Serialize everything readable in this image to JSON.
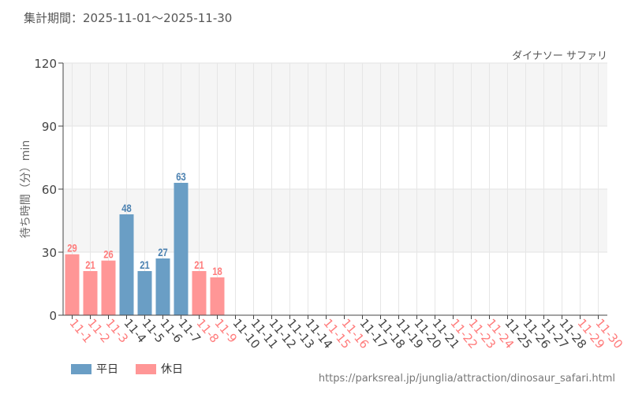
{
  "header": {
    "period": "集計期間：2025-11-01～2025-11-30"
  },
  "chart_data": {
    "type": "bar",
    "title": "",
    "subtitle": "ダイナソー サファリ",
    "ylabel": "待ち時間（分）min",
    "xlabel": "",
    "ylim": [
      0,
      120
    ],
    "yticks": [
      0,
      30,
      60,
      90,
      120
    ],
    "grid": true,
    "legend_position": "bottom-left",
    "categories": [
      "11-1",
      "11-2",
      "11-3",
      "11-4",
      "11-5",
      "11-6",
      "11-7",
      "11-8",
      "11-9",
      "11-10",
      "11-11",
      "11-12",
      "11-13",
      "11-14",
      "11-15",
      "11-16",
      "11-17",
      "11-18",
      "11-19",
      "11-20",
      "11-21",
      "11-22",
      "11-23",
      "11-24",
      "11-25",
      "11-26",
      "11-27",
      "11-28",
      "11-29",
      "11-30"
    ],
    "holiday": [
      true,
      true,
      true,
      false,
      false,
      false,
      false,
      true,
      true,
      false,
      false,
      false,
      false,
      false,
      true,
      true,
      false,
      false,
      false,
      false,
      false,
      true,
      true,
      true,
      false,
      false,
      false,
      false,
      true,
      true
    ],
    "values": [
      29,
      21,
      26,
      48,
      21,
      27,
      63,
      21,
      18,
      null,
      null,
      null,
      null,
      null,
      null,
      null,
      null,
      null,
      null,
      null,
      null,
      null,
      null,
      null,
      null,
      null,
      null,
      null,
      null,
      null
    ],
    "series": [
      {
        "name": "平日",
        "color": "#6a9ec5"
      },
      {
        "name": "休日",
        "color": "#ff9696"
      }
    ],
    "label_colors": {
      "weekday": "#4a80b0",
      "holiday": "#ff7b7b"
    }
  },
  "footer": {
    "url": "https://parksreal.jp/junglia/attraction/dinosaur_safari.html"
  }
}
